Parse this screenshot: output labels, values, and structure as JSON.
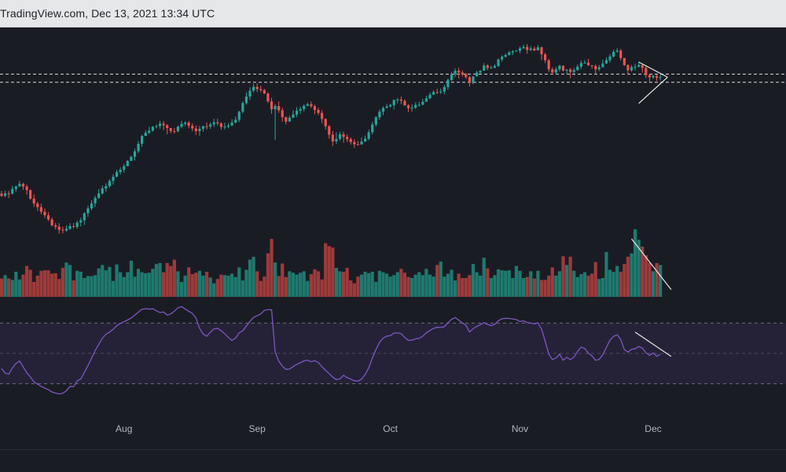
{
  "header": {
    "source_label": "TradingView.com, Dec 13, 2021 13:34 UTC"
  },
  "colors": {
    "background": "#1a1c24",
    "bull": "#26a69a",
    "bear": "#ef5350",
    "bull_volume": "#1f7a6f",
    "bear_volume": "#9e3b3b",
    "rsi_line": "#7e57c2",
    "rsi_band": "#2b2540",
    "trendline": "#e6e6e6",
    "month_label": "#b2b5be"
  },
  "chart_data": {
    "type": "candlestick",
    "title": "",
    "xlabel": "",
    "ylabel": "",
    "grid": false,
    "x_tick_labels": [
      "Aug",
      "Sep",
      "Oct",
      "Nov",
      "Dec"
    ],
    "price_range": [
      0,
      100
    ],
    "horizontal_levels": [
      90.5,
      86.5
    ],
    "trendlines": {
      "price_triangle_upper": [
        [
          177,
          96.5
        ],
        [
          185,
          89
        ]
      ],
      "price_triangle_lower": [
        [
          177,
          76
        ],
        [
          185,
          89
        ]
      ],
      "volume_down": [
        [
          175,
          12
        ],
        [
          186,
          1.5
        ]
      ],
      "rsi_down": [
        [
          176,
          64
        ],
        [
          186,
          48
        ]
      ]
    },
    "volume_range": [
      0,
      13
    ],
    "rsi_range": [
      20,
      80
    ],
    "rsi_levels": [
      70,
      30
    ],
    "months": [
      {
        "label": "Aug",
        "index": 34
      },
      {
        "label": "Sep",
        "index": 71
      },
      {
        "label": "Oct",
        "index": 108
      },
      {
        "label": "Nov",
        "index": 144
      },
      {
        "label": "Dec",
        "index": 181
      }
    ],
    "candles": [
      [
        31.3,
        30.2,
        32.7,
        29.7
      ],
      [
        30.2,
        31.4,
        32.8,
        29.6
      ],
      [
        31.4,
        31.3,
        32.6,
        29.1
      ],
      [
        31.3,
        33.6,
        35.1,
        30.9
      ],
      [
        33.6,
        34.8,
        35.3,
        32.2
      ],
      [
        34.8,
        36.1,
        37.6,
        35.4
      ],
      [
        36.1,
        34.8,
        36.7,
        33.2
      ],
      [
        34.8,
        33.1,
        35.7,
        30.8
      ],
      [
        33.1,
        28.8,
        33.3,
        28.2
      ],
      [
        28.8,
        26.4,
        30.9,
        24.7
      ],
      [
        26.4,
        24.6,
        27.3,
        22.7
      ],
      [
        24.6,
        22.3,
        26.3,
        21.1
      ],
      [
        22.3,
        20.6,
        23.9,
        19.2
      ],
      [
        20.6,
        18.5,
        22.1,
        17.7
      ],
      [
        18.5,
        15.6,
        19.5,
        15.1
      ],
      [
        15.6,
        14.9,
        16.7,
        13.6
      ],
      [
        14.9,
        13.4,
        16.7,
        11.5
      ],
      [
        13.4,
        13.0,
        14.9,
        11.6
      ],
      [
        13.0,
        13.9,
        15.6,
        12.5
      ],
      [
        13.9,
        15.2,
        16.7,
        13.3
      ],
      [
        15.2,
        14.8,
        16.7,
        14.1
      ],
      [
        14.8,
        17.0,
        17.9,
        13.9
      ],
      [
        17.0,
        18.1,
        19.4,
        15.1
      ],
      [
        18.1,
        21.6,
        22.0,
        15.8
      ],
      [
        21.6,
        24.0,
        25.3,
        19.8
      ],
      [
        24.0,
        26.5,
        28.0,
        23.1
      ],
      [
        26.5,
        29.2,
        30.2,
        24.7
      ],
      [
        29.2,
        31.4,
        33.6,
        28.7
      ],
      [
        31.4,
        33.9,
        35.3,
        30.7
      ],
      [
        33.9,
        35.0,
        36.4,
        32.3
      ],
      [
        35.0,
        37.6,
        38.5,
        34.1
      ],
      [
        37.6,
        39.7,
        40.9,
        35.8
      ],
      [
        39.7,
        42.0,
        43.1,
        39.4
      ],
      [
        42.0,
        43.1,
        44.3,
        40.8
      ],
      [
        43.1,
        44.9,
        46.0,
        41.7
      ],
      [
        44.9,
        47.5,
        48.0,
        45.1
      ],
      [
        47.5,
        49.6,
        50.0,
        48.6
      ],
      [
        49.6,
        52.3,
        53.6,
        47.8
      ],
      [
        52.3,
        56.0,
        57.4,
        51.4
      ],
      [
        56.0,
        59.9,
        60.5,
        54.6
      ],
      [
        59.9,
        61.5,
        62.7,
        60.1
      ],
      [
        61.5,
        62.5,
        64.4,
        60.8
      ],
      [
        62.5,
        64.4,
        64.8,
        62.0
      ],
      [
        64.4,
        64.8,
        65.6,
        63.6
      ],
      [
        64.8,
        66.0,
        67.3,
        63.4
      ],
      [
        66.0,
        65.2,
        67.3,
        62.7
      ],
      [
        65.2,
        63.8,
        65.7,
        60.7
      ],
      [
        63.8,
        62.3,
        63.9,
        61.2
      ],
      [
        62.3,
        62.2,
        63.8,
        61.1
      ],
      [
        62.2,
        64.5,
        65.1,
        61.7
      ],
      [
        64.5,
        65.9,
        67.4,
        63.7
      ],
      [
        65.9,
        66.5,
        67.1,
        64.8
      ],
      [
        66.5,
        64.9,
        67.3,
        63.7
      ],
      [
        64.9,
        63.6,
        66.2,
        62.2
      ],
      [
        63.6,
        62.3,
        65.1,
        60.4
      ],
      [
        62.3,
        63.4,
        64.9,
        60.0
      ],
      [
        63.4,
        64.7,
        64.9,
        62.0
      ],
      [
        64.7,
        64.6,
        66.6,
        63.0
      ],
      [
        64.6,
        65.6,
        66.6,
        63.4
      ],
      [
        65.6,
        66.6,
        68.4,
        64.3
      ],
      [
        66.6,
        66.1,
        68.4,
        65.1
      ],
      [
        66.1,
        64.3,
        66.7,
        62.9
      ],
      [
        64.3,
        64.5,
        66.5,
        63.0
      ],
      [
        64.5,
        65.1,
        66.3,
        63.7
      ],
      [
        65.1,
        66.5,
        68.2,
        64.8
      ],
      [
        66.5,
        67.9,
        69.5,
        66.2
      ],
      [
        67.9,
        71.9,
        72.4,
        66.7
      ],
      [
        71.9,
        76.2,
        77.0,
        71.1
      ],
      [
        76.2,
        79.4,
        81.5,
        75.4
      ],
      [
        79.4,
        82.3,
        84.0,
        77.7
      ],
      [
        82.3,
        84.2,
        85.8,
        81.4
      ],
      [
        84.2,
        83.1,
        86.0,
        81.6
      ],
      [
        83.1,
        82.6,
        84.8,
        81.6
      ],
      [
        82.6,
        80.9,
        83.2,
        80.7
      ],
      [
        80.9,
        77.0,
        81.5,
        76.2
      ],
      [
        77.0,
        73.1,
        78.8,
        70.9
      ],
      [
        73.1,
        74.7,
        75.7,
        57.9
      ],
      [
        74.7,
        72.6,
        77.0,
        71.3
      ],
      [
        72.6,
        69.2,
        73.9,
        67.0
      ],
      [
        69.2,
        67.0,
        69.4,
        65.6
      ],
      [
        67.0,
        68.9,
        69.9,
        67.7
      ],
      [
        68.9,
        70.5,
        72.7,
        68.8
      ],
      [
        70.5,
        72.4,
        74.1,
        69.2
      ],
      [
        72.4,
        73.2,
        74.4,
        71.0
      ],
      [
        73.2,
        74.8,
        75.5,
        72.0
      ],
      [
        74.8,
        75.6,
        76.4,
        74.6
      ],
      [
        75.6,
        74.6,
        77.0,
        73.8
      ],
      [
        74.6,
        72.8,
        75.3,
        70.7
      ],
      [
        72.8,
        71.3,
        73.9,
        70.2
      ],
      [
        71.3,
        68.3,
        72.7,
        66.2
      ],
      [
        68.3,
        64.7,
        68.6,
        63.1
      ],
      [
        64.7,
        60.5,
        65.2,
        58.5
      ],
      [
        60.5,
        57.2,
        62.3,
        54.9
      ],
      [
        57.2,
        58.4,
        61.7,
        56.0
      ],
      [
        58.4,
        60.7,
        62.0,
        57.5
      ],
      [
        60.7,
        59.4,
        62.0,
        56.6
      ],
      [
        59.4,
        58.3,
        60.7,
        56.9
      ],
      [
        58.3,
        56.9,
        59.2,
        55.6
      ],
      [
        56.9,
        55.7,
        58.3,
        53.9
      ],
      [
        55.7,
        55.6,
        57.4,
        55.2
      ],
      [
        55.6,
        57.1,
        59.2,
        55.8
      ],
      [
        57.1,
        58.5,
        60.1,
        57.1
      ],
      [
        58.5,
        61.7,
        63.0,
        57.7
      ],
      [
        61.7,
        65.6,
        66.8,
        60.6
      ],
      [
        65.6,
        69.1,
        69.7,
        64.5
      ],
      [
        69.1,
        71.9,
        73.0,
        67.9
      ],
      [
        71.9,
        73.7,
        74.5,
        70.2
      ],
      [
        73.7,
        74.5,
        75.7,
        73.9
      ],
      [
        74.5,
        75.2,
        75.9,
        74.0
      ],
      [
        75.2,
        77.7,
        78.0,
        73.1
      ],
      [
        77.7,
        77.9,
        78.7,
        76.0
      ],
      [
        77.9,
        77.3,
        79.4,
        75.6
      ],
      [
        77.3,
        75.0,
        78.0,
        74.9
      ],
      [
        75.0,
        73.7,
        75.6,
        71.7
      ],
      [
        73.7,
        73.9,
        75.5,
        71.9
      ],
      [
        73.9,
        75.3,
        76.6,
        73.2
      ],
      [
        75.3,
        75.3,
        76.8,
        74.5
      ],
      [
        75.3,
        76.8,
        78.3,
        75.2
      ],
      [
        76.8,
        78.5,
        79.8,
        77.0
      ],
      [
        78.5,
        80.3,
        81.4,
        78.1
      ],
      [
        80.3,
        81.6,
        82.6,
        80.3
      ],
      [
        81.6,
        81.5,
        83.3,
        80.7
      ],
      [
        81.5,
        81.9,
        83.4,
        80.7
      ],
      [
        81.9,
        84.1,
        85.2,
        80.5
      ],
      [
        84.1,
        87.6,
        88.3,
        82.8
      ],
      [
        87.6,
        90.5,
        91.7,
        87.1
      ],
      [
        90.5,
        92.2,
        93.4,
        89.2
      ],
      [
        92.2,
        91.3,
        93.7,
        88.4
      ],
      [
        91.3,
        90.4,
        92.4,
        89.3
      ],
      [
        90.4,
        89.0,
        91.1,
        88.2
      ],
      [
        89.0,
        86.1,
        89.7,
        84.4
      ],
      [
        86.1,
        89.4,
        89.4,
        85.5
      ],
      [
        89.4,
        91.3,
        92.2,
        89.3
      ],
      [
        91.3,
        92.2,
        92.4,
        90.6
      ],
      [
        92.2,
        94.8,
        96.0,
        92.4
      ],
      [
        94.8,
        93.6,
        95.5,
        92.5
      ],
      [
        93.6,
        93.7,
        94.7,
        93.2
      ],
      [
        93.7,
        94.5,
        95.4,
        93.4
      ],
      [
        94.5,
        97.8,
        98.2,
        94.1
      ],
      [
        97.8,
        99.1,
        99.8,
        96.7
      ],
      [
        99.1,
        100.0,
        100.8,
        98.8
      ],
      [
        100.0,
        101.3,
        102.0,
        99.7
      ],
      [
        101.3,
        101.8,
        102.4,
        100.0
      ],
      [
        101.8,
        102.1,
        102.5,
        101.8
      ],
      [
        102.1,
        103.3,
        104.2,
        100.8
      ],
      [
        103.3,
        104.0,
        105.1,
        103.1
      ],
      [
        104.0,
        102.5,
        105.4,
        100.6
      ],
      [
        102.5,
        103.2,
        104.5,
        101.9
      ],
      [
        103.2,
        102.3,
        104.2,
        101.8
      ],
      [
        102.3,
        103.8,
        105.0,
        102.2
      ],
      [
        103.8,
        100.3,
        104.2,
        97.4
      ],
      [
        100.3,
        97.4,
        101.1,
        96.0
      ],
      [
        97.4,
        92.9,
        98.0,
        91.6
      ],
      [
        92.9,
        91.3,
        93.9,
        90.3
      ],
      [
        91.3,
        92.9,
        94.0,
        90.4
      ],
      [
        92.9,
        94.7,
        95.1,
        91.8
      ],
      [
        94.7,
        92.3,
        94.8,
        91.7
      ],
      [
        92.3,
        92.8,
        93.0,
        90.5
      ],
      [
        92.8,
        91.6,
        93.5,
        88.5
      ],
      [
        91.6,
        92.5,
        93.6,
        89.8
      ],
      [
        92.5,
        94.2,
        95.3,
        92.2
      ],
      [
        94.2,
        96.0,
        97.3,
        93.1
      ],
      [
        96.0,
        96.2,
        97.5,
        95.7
      ],
      [
        96.2,
        94.9,
        98.1,
        94.7
      ],
      [
        94.9,
        94.5,
        95.0,
        93.1
      ],
      [
        94.5,
        92.9,
        95.4,
        90.6
      ],
      [
        92.9,
        93.9,
        95.1,
        92.0
      ],
      [
        93.9,
        95.8,
        97.6,
        94.4
      ],
      [
        95.8,
        97.4,
        98.8,
        95.6
      ],
      [
        97.4,
        99.2,
        100.5,
        96.2
      ],
      [
        99.2,
        101.6,
        102.7,
        98.8
      ],
      [
        101.6,
        102.2,
        103.4,
        101.2
      ],
      [
        102.2,
        98.5,
        103.0,
        97.3
      ],
      [
        98.5,
        95.0,
        98.5,
        94.5
      ],
      [
        95.0,
        92.4,
        95.4,
        90.4
      ],
      [
        92.4,
        94.0,
        95.1,
        91.7
      ],
      [
        94.0,
        94.2,
        95.6,
        92.3
      ],
      [
        94.2,
        95.0,
        96.7,
        93.7
      ],
      [
        95.0,
        93.6,
        95.4,
        91.2
      ],
      [
        93.6,
        90.0,
        94.3,
        88.6
      ],
      [
        90.0,
        88.9,
        90.7,
        86.7
      ],
      [
        88.9,
        89.6,
        90.3,
        88.2
      ],
      [
        89.6,
        88.7,
        90.2,
        87.1
      ],
      [
        88.7,
        89.0,
        90.3,
        87.4
      ]
    ],
    "volume": [
      3.8,
      4.5,
      3.8,
      3.5,
      5.2,
      3.6,
      4.6,
      6.4,
      5.6,
      3.1,
      4.4,
      5.4,
      5.5,
      5.5,
      4.8,
      4.9,
      3.7,
      6.0,
      7.1,
      6.6,
      3.4,
      5.4,
      5.2,
      3.9,
      4.3,
      4.3,
      4.5,
      5.9,
      6.6,
      5.5,
      6.2,
      3.3,
      6.7,
      5.1,
      4.1,
      5.1,
      7.5,
      4.2,
      5.8,
      5.1,
      4.9,
      5.0,
      5.8,
      6.8,
      7.0,
      5.1,
      7.0,
      6.4,
      7.7,
      5.3,
      3.1,
      4.4,
      6.1,
      4.7,
      5.0,
      5.4,
      4.4,
      5.2,
      4.0,
      2.8,
      3.7,
      4.6,
      4.5,
      4.4,
      4.8,
      4.1,
      6.1,
      3.4,
      5.6,
      7.7,
      8.3,
      5.3,
      3.3,
      4.2,
      9.0,
      12.0,
      7.1,
      4.3,
      6.9,
      4.1,
      5.3,
      5.0,
      4.6,
      5.0,
      5.3,
      3.3,
      4.7,
      5.7,
      5.3,
      3.6,
      11.1,
      10.5,
      10.2,
      6.0,
      5.3,
      5.2,
      6.0,
      3.4,
      2.8,
      4.2,
      4.6,
      5.2,
      4.9,
      5.2,
      3.1,
      5.4,
      5.1,
      4.8,
      4.2,
      4.5,
      5.1,
      5.8,
      5.0,
      4.1,
      3.9,
      4.6,
      5.1,
      4.5,
      5.8,
      4.6,
      4.2,
      6.6,
      7.3,
      4.2,
      4.8,
      5.6,
      3.4,
      4.8,
      3.9,
      3.9,
      4.5,
      6.8,
      5.1,
      4.4,
      8.1,
      5.9,
      3.9,
      4.5,
      5.7,
      5.5,
      5.4,
      5.5,
      3.9,
      6.4,
      5.4,
      3.9,
      4.1,
      5.3,
      3.8,
      5.4,
      3.5,
      3.5,
      4.4,
      6.1,
      4.4,
      5.3,
      8.4,
      6.6,
      8.3,
      5.4,
      4.1,
      4.7,
      5.1,
      4.4,
      4.8,
      7.2,
      3.7,
      3.9,
      9.3,
      5.6,
      5.2,
      6.4,
      5.2,
      6.8,
      8.3,
      9.0,
      14.0,
      11.8,
      10.4,
      8.6,
      7.1,
      5.3,
      7.0,
      6.6
    ],
    "rsi": [
      40.1,
      37.0,
      36.3,
      40.4,
      43.4,
      45.0,
      41.1,
      37.3,
      34.5,
      31.3,
      29.8,
      28.3,
      27.2,
      26.1,
      24.6,
      23.9,
      23.3,
      23.7,
      25.4,
      28.2,
      28.1,
      31.9,
      33.2,
      37.5,
      42.0,
      46.9,
      51.9,
      56.0,
      60.0,
      62.6,
      64.0,
      65.9,
      68.2,
      69.7,
      70.9,
      72.0,
      73.3,
      75.2,
      77.2,
      79.0,
      79.5,
      79.1,
      79.4,
      78.1,
      76.9,
      77.3,
      75.3,
      76.0,
      77.8,
      80.1,
      80.8,
      79.3,
      77.8,
      76.4,
      73.4,
      66.5,
      62.7,
      61.3,
      63.9,
      66.2,
      66.5,
      64.9,
      62.9,
      60.5,
      58.6,
      60.1,
      63.6,
      64.9,
      68.0,
      71.1,
      73.7,
      74.9,
      76.0,
      78.3,
      78.8,
      78.7,
      50.8,
      44.9,
      41.6,
      39.5,
      39.7,
      41.3,
      42.8,
      43.8,
      45.1,
      45.5,
      44.5,
      45.2,
      44.0,
      41.2,
      38.9,
      36.7,
      34.4,
      32.7,
      33.2,
      35.6,
      34.0,
      33.1,
      32.0,
      31.8,
      33.1,
      36.1,
      40.6,
      46.8,
      52.6,
      57.3,
      60.1,
      61.4,
      61.7,
      63.4,
      63.5,
      63.0,
      60.5,
      58.6,
      58.7,
      59.6,
      60.0,
      61.4,
      63.6,
      65.1,
      66.5,
      67.2,
      67.1,
      67.6,
      70.1,
      72.5,
      73.6,
      71.9,
      70.1,
      68.5,
      64.1,
      66.3,
      67.8,
      68.9,
      70.3,
      69.1,
      68.3,
      69.2,
      71.5,
      72.8,
      73.1,
      73.0,
      72.7,
      72.3,
      71.0,
      71.4,
      70.4,
      70.0,
      69.5,
      70.1,
      66.0,
      58.1,
      49.6,
      46.0,
      46.9,
      49.5,
      45.5,
      47.4,
      45.9,
      47.5,
      51.3,
      54.2,
      53.2,
      50.2,
      48.4,
      45.5,
      46.0,
      49.1,
      53.9,
      58.7,
      61.2,
      62.3,
      59.1,
      52.5,
      50.8,
      52.8,
      53.0,
      54.6,
      53.4,
      50.4,
      48.7,
      50.3,
      48.1,
      49.5
    ]
  }
}
